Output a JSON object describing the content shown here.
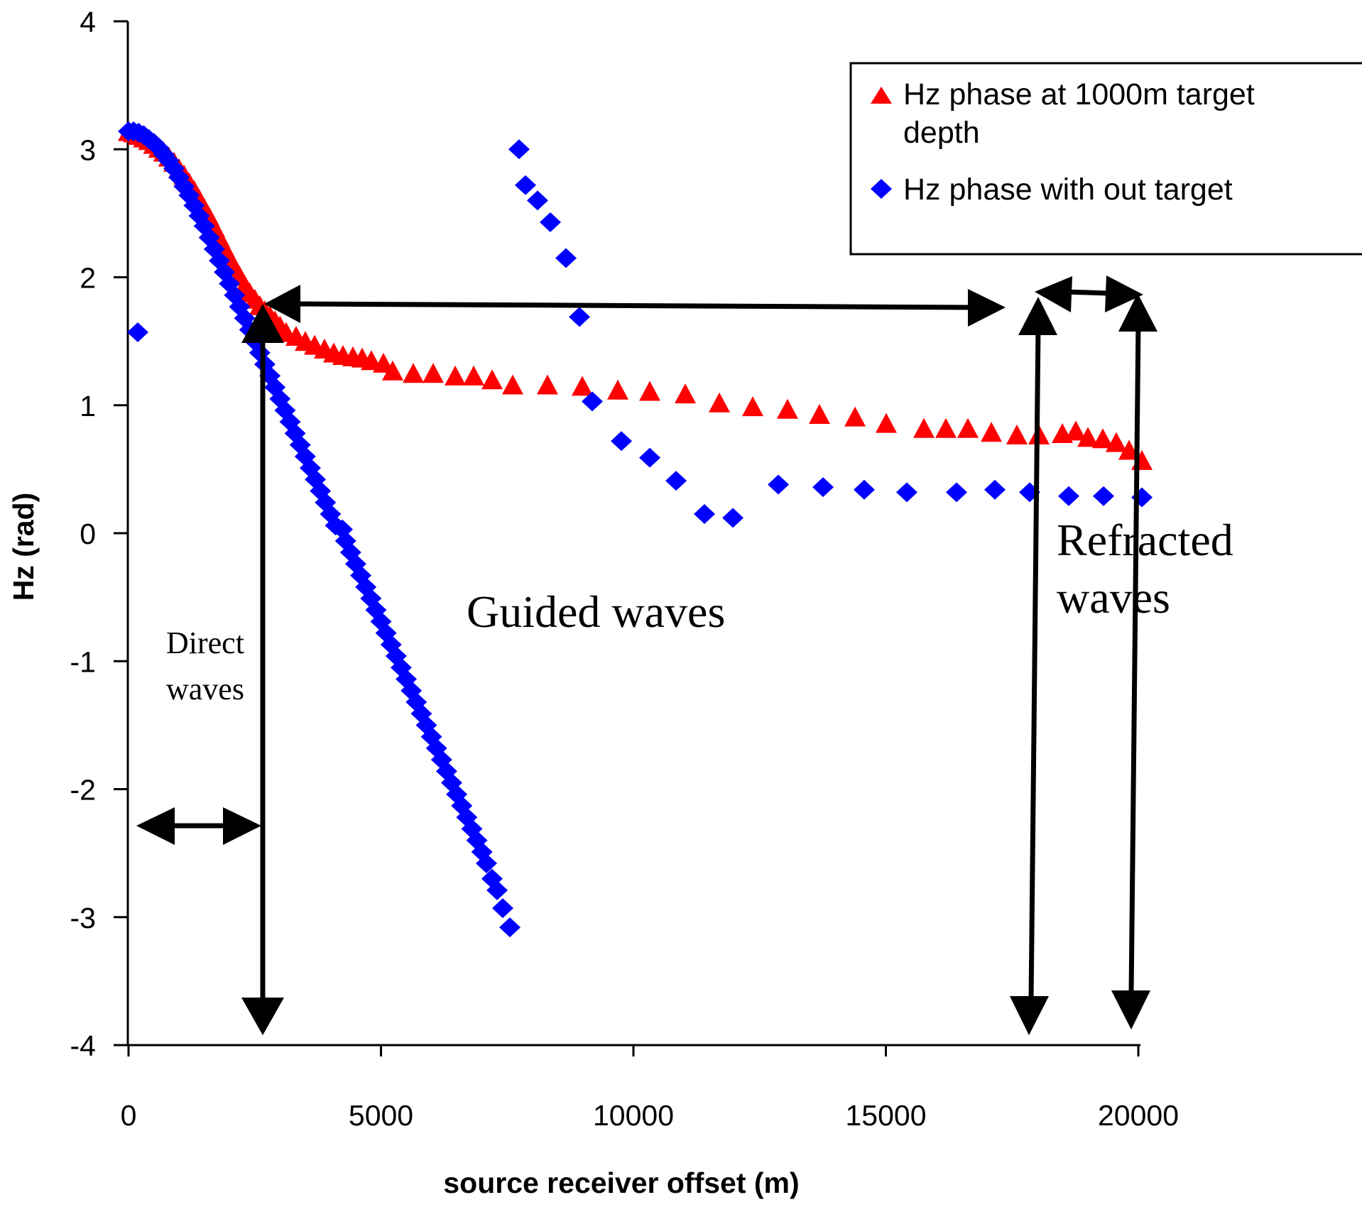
{
  "chart_data": {
    "type": "scatter",
    "title": "",
    "xlabel": "source receiver offset (m)",
    "ylabel": "Hz (rad)",
    "xlim": [
      0,
      20000
    ],
    "ylim": [
      -4,
      4
    ],
    "xticks": [
      0,
      5000,
      10000,
      15000,
      20000
    ],
    "yticks": [
      4,
      3,
      2,
      1,
      0,
      -1,
      -2,
      -3,
      -4
    ],
    "xtick_labels": [
      "0",
      "5000",
      "10000",
      "15000",
      "20000"
    ],
    "ytick_labels": [
      "4",
      "3",
      "2",
      "1",
      "0",
      "-1",
      "-2",
      "-3",
      "-4"
    ],
    "grid": false,
    "legend_position": "top-right",
    "series": [
      {
        "name": "Hz phase at 1000m target depth",
        "legend_lines": [
          "Hz phase at 1000m target",
          "depth"
        ],
        "marker": "triangle",
        "color": "#ff0000",
        "points": [
          [
            0,
            3.12
          ],
          [
            100,
            3.11
          ],
          [
            200,
            3.09
          ],
          [
            300,
            3.07
          ],
          [
            400,
            3.05
          ],
          [
            500,
            3.02
          ],
          [
            600,
            2.99
          ],
          [
            700,
            2.96
          ],
          [
            800,
            2.92
          ],
          [
            900,
            2.88
          ],
          [
            1000,
            2.83
          ],
          [
            1100,
            2.78
          ],
          [
            1200,
            2.72
          ],
          [
            1300,
            2.66
          ],
          [
            1400,
            2.59
          ],
          [
            1500,
            2.52
          ],
          [
            1600,
            2.45
          ],
          [
            1700,
            2.37
          ],
          [
            1800,
            2.29
          ],
          [
            1900,
            2.21
          ],
          [
            2000,
            2.13
          ],
          [
            2100,
            2.06
          ],
          [
            2200,
            1.99
          ],
          [
            2300,
            1.92
          ],
          [
            2400,
            1.86
          ],
          [
            2500,
            1.81
          ],
          [
            2600,
            1.76
          ],
          [
            2700,
            1.72
          ],
          [
            2800,
            1.68
          ],
          [
            2900,
            1.64
          ],
          [
            3000,
            1.6
          ],
          [
            3122,
            1.55
          ],
          [
            3319,
            1.52
          ],
          [
            3502,
            1.48
          ],
          [
            3685,
            1.45
          ],
          [
            3882,
            1.42
          ],
          [
            4065,
            1.39
          ],
          [
            4247,
            1.37
          ],
          [
            4444,
            1.36
          ],
          [
            4627,
            1.35
          ],
          [
            4810,
            1.33
          ],
          [
            5049,
            1.31
          ],
          [
            5232,
            1.25
          ],
          [
            5640,
            1.23
          ],
          [
            6034,
            1.23
          ],
          [
            6470,
            1.21
          ],
          [
            6836,
            1.21
          ],
          [
            7201,
            1.18
          ],
          [
            7609,
            1.14
          ],
          [
            8298,
            1.14
          ],
          [
            8987,
            1.13
          ],
          [
            9691,
            1.1
          ],
          [
            10324,
            1.09
          ],
          [
            11027,
            1.07
          ],
          [
            11702,
            1.0
          ],
          [
            12363,
            0.97
          ],
          [
            13052,
            0.95
          ],
          [
            13685,
            0.91
          ],
          [
            14389,
            0.89
          ],
          [
            15007,
            0.84
          ],
          [
            15753,
            0.8
          ],
          [
            16189,
            0.8
          ],
          [
            16625,
            0.8
          ],
          [
            17089,
            0.77
          ],
          [
            17595,
            0.75
          ],
          [
            18031,
            0.75
          ],
          [
            18496,
            0.76
          ],
          [
            18762,
            0.78
          ],
          [
            19002,
            0.73
          ],
          [
            19297,
            0.72
          ],
          [
            19564,
            0.69
          ],
          [
            19817,
            0.63
          ],
          [
            20071,
            0.55
          ]
        ]
      },
      {
        "name": "Hz phase with out target",
        "legend_lines": [
          "Hz phase with out target"
        ],
        "marker": "diamond",
        "color": "#0000ff",
        "points": [
          [
            0,
            3.14
          ],
          [
            100,
            3.14
          ],
          [
            183,
            1.57
          ],
          [
            200,
            3.13
          ],
          [
            300,
            3.11
          ],
          [
            400,
            3.08
          ],
          [
            500,
            3.05
          ],
          [
            600,
            3.01
          ],
          [
            700,
            2.96
          ],
          [
            800,
            2.91
          ],
          [
            900,
            2.85
          ],
          [
            1000,
            2.78
          ],
          [
            1100,
            2.71
          ],
          [
            1200,
            2.64
          ],
          [
            1300,
            2.56
          ],
          [
            1400,
            2.48
          ],
          [
            1500,
            2.4
          ],
          [
            1600,
            2.31
          ],
          [
            1700,
            2.22
          ],
          [
            1800,
            2.13
          ],
          [
            1900,
            2.04
          ],
          [
            2000,
            1.95
          ],
          [
            2100,
            1.86
          ],
          [
            2200,
            1.77
          ],
          [
            2300,
            1.68
          ],
          [
            2400,
            1.59
          ],
          [
            2500,
            1.5
          ],
          [
            2600,
            1.41
          ],
          [
            2700,
            1.32
          ],
          [
            2800,
            1.23
          ],
          [
            2900,
            1.14
          ],
          [
            3000,
            1.05
          ],
          [
            3100,
            0.96
          ],
          [
            3200,
            0.87
          ],
          [
            3300,
            0.78
          ],
          [
            3400,
            0.69
          ],
          [
            3500,
            0.6
          ],
          [
            3600,
            0.51
          ],
          [
            3700,
            0.42
          ],
          [
            3800,
            0.33
          ],
          [
            3900,
            0.24
          ],
          [
            4000,
            0.15
          ],
          [
            4100,
            0.06
          ],
          [
            4234,
            0.03
          ],
          [
            4300,
            -0.06
          ],
          [
            4400,
            -0.15
          ],
          [
            4500,
            -0.24
          ],
          [
            4600,
            -0.33
          ],
          [
            4700,
            -0.42
          ],
          [
            4800,
            -0.51
          ],
          [
            4900,
            -0.6
          ],
          [
            5000,
            -0.69
          ],
          [
            5100,
            -0.78
          ],
          [
            5200,
            -0.87
          ],
          [
            5300,
            -0.96
          ],
          [
            5400,
            -1.05
          ],
          [
            5500,
            -1.14
          ],
          [
            5600,
            -1.23
          ],
          [
            5700,
            -1.32
          ],
          [
            5800,
            -1.41
          ],
          [
            5900,
            -1.5
          ],
          [
            6000,
            -1.59
          ],
          [
            6100,
            -1.68
          ],
          [
            6200,
            -1.77
          ],
          [
            6300,
            -1.86
          ],
          [
            6400,
            -1.95
          ],
          [
            6500,
            -2.04
          ],
          [
            6600,
            -2.13
          ],
          [
            6700,
            -2.22
          ],
          [
            6800,
            -2.31
          ],
          [
            6900,
            -2.4
          ],
          [
            7000,
            -2.49
          ],
          [
            7089,
            -2.58
          ],
          [
            7200,
            -2.7
          ],
          [
            7300,
            -2.79
          ],
          [
            7412,
            -2.93
          ],
          [
            7553,
            -3.08
          ],
          [
            7735,
            3.0
          ],
          [
            7862,
            2.72
          ],
          [
            8101,
            2.6
          ],
          [
            8354,
            2.43
          ],
          [
            8664,
            2.15
          ],
          [
            8931,
            1.69
          ],
          [
            9184,
            1.03
          ],
          [
            9761,
            0.72
          ],
          [
            10324,
            0.59
          ],
          [
            10845,
            0.41
          ],
          [
            11407,
            0.15
          ],
          [
            11970,
            0.12
          ],
          [
            12870,
            0.38
          ],
          [
            13756,
            0.36
          ],
          [
            14571,
            0.34
          ],
          [
            15415,
            0.32
          ],
          [
            16400,
            0.32
          ],
          [
            17159,
            0.34
          ],
          [
            17848,
            0.32
          ],
          [
            18622,
            0.29
          ],
          [
            19311,
            0.29
          ],
          [
            20071,
            0.28
          ]
        ]
      }
    ],
    "annotations": [
      {
        "text_lines": [
          "Direct",
          "waves"
        ],
        "region": "0-2700 m"
      },
      {
        "text_lines": [
          "Guided waves"
        ],
        "region": "2700-17500 m"
      },
      {
        "text_lines": [
          "Refracted",
          "waves"
        ],
        "region": "17900-20000 m"
      }
    ],
    "region_arrows": [
      {
        "name": "direct",
        "from": 0,
        "to": 2700
      },
      {
        "name": "guided",
        "from": 2700,
        "to": 17500
      },
      {
        "name": "refracted",
        "from": 17900,
        "to": 20000
      }
    ],
    "divider_lines_x": [
      2700,
      17900,
      19900
    ]
  }
}
